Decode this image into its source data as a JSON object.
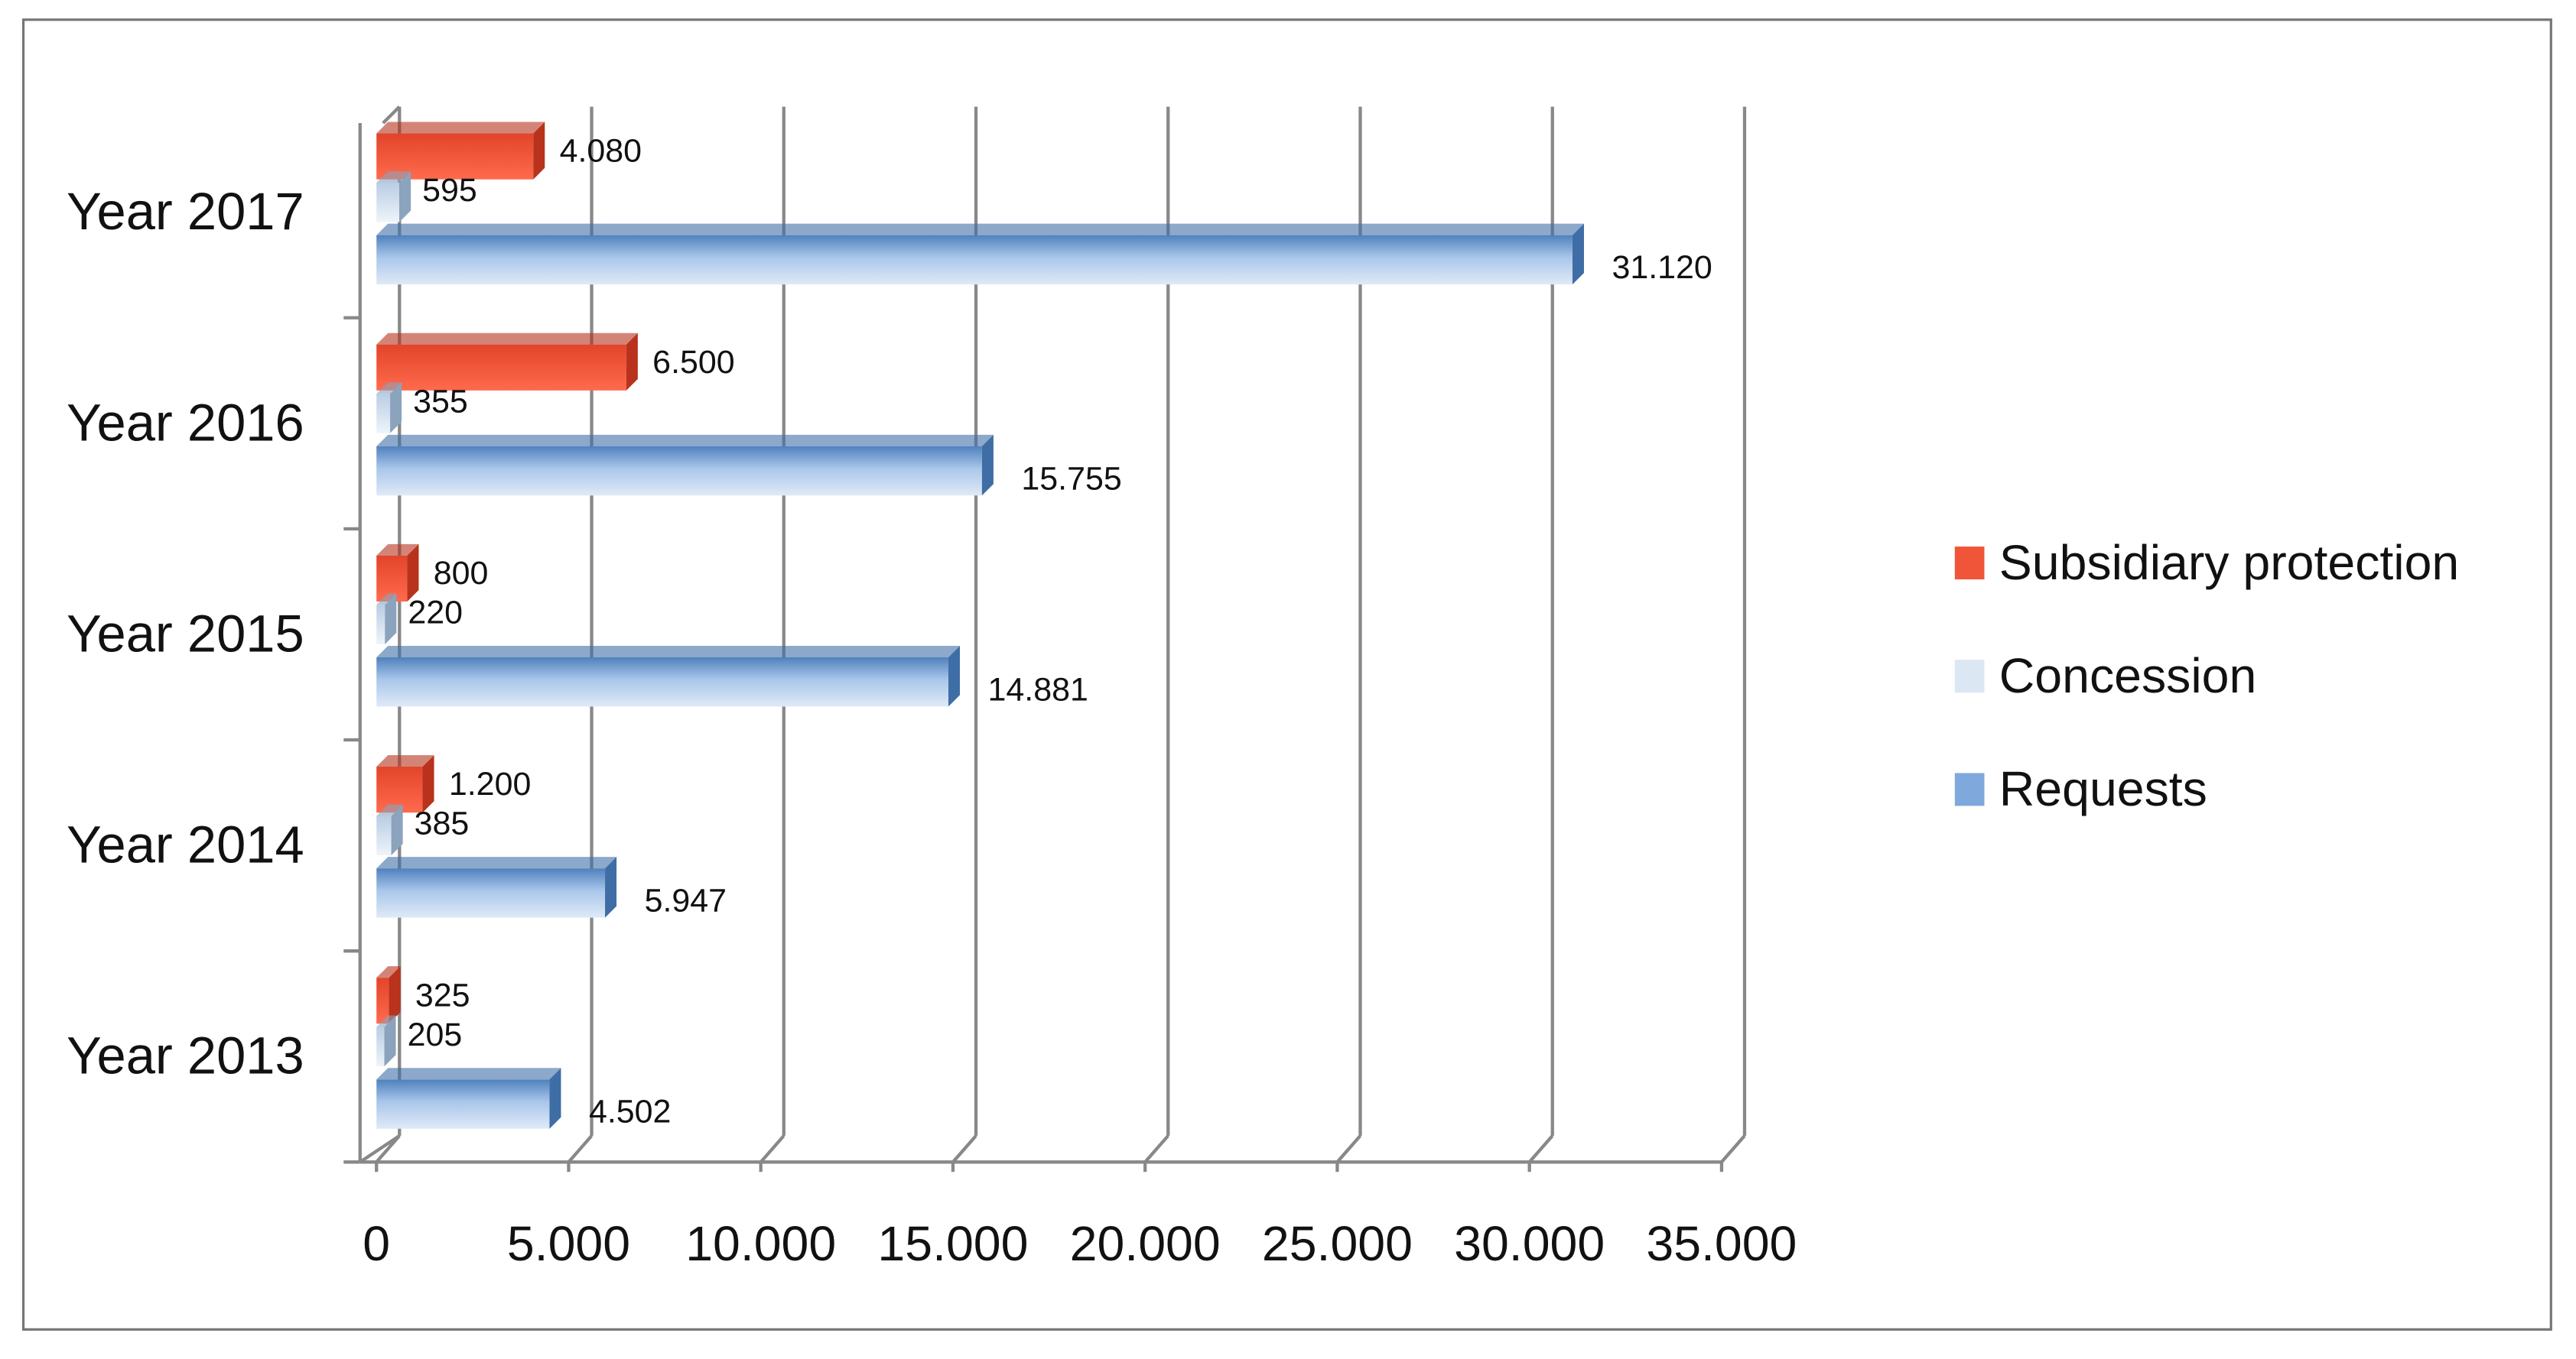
{
  "chart_data": {
    "type": "bar",
    "orientation": "horizontal",
    "categories": [
      "Year 2013",
      "Year 2014",
      "Year 2015",
      "Year 2016",
      "Year 2017"
    ],
    "series": [
      {
        "name": "Subsidiary protection",
        "color": "#f0553a",
        "values": [
          325,
          1200,
          800,
          6500,
          4080
        ],
        "value_labels": [
          "325",
          "1.200",
          "800",
          "6.500",
          "4.080"
        ]
      },
      {
        "name": "Concession",
        "color": "#dbe7f3",
        "values": [
          205,
          385,
          220,
          355,
          595
        ]
      },
      {
        "name": "Requests",
        "color": "#7fa9dc",
        "values": [
          4502,
          5947,
          14881,
          15755,
          31120
        ],
        "value_labels": [
          "4.502",
          "5.947",
          "14.881",
          "15.755",
          "31.120"
        ]
      }
    ],
    "xlim": [
      0,
      35000
    ],
    "xticks": [
      0,
      {
        "value": 5000,
        "label": "5.000"
      },
      {
        "value": 10000,
        "label": "10.000"
      },
      {
        "value": 15000,
        "label": "15.000"
      },
      {
        "value": 20000,
        "label": "20.000"
      },
      {
        "value": 25000,
        "label": "25.000"
      },
      {
        "value": 30000,
        "label": "30.000"
      },
      {
        "value": 35000,
        "label": "35.000"
      }
    ],
    "grid": true,
    "legend": "right"
  }
}
